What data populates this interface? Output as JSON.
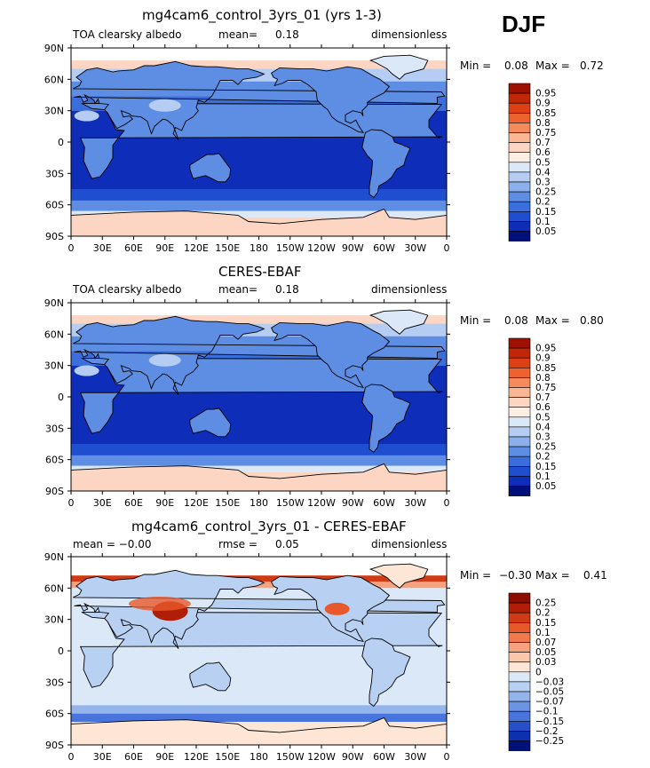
{
  "season": "DJF",
  "panels": [
    {
      "title": "mg4cam6_control_3yrs_01 (yrs 1-3)",
      "left_label": "TOA clearsky albedo",
      "center_label": "mean=",
      "center_value": "0.18",
      "right_label": "dimensionless",
      "min_label": "Min =",
      "min_value": "0.08",
      "max_label": "Max =",
      "max_value": "0.72",
      "levels": [
        "0.95",
        "0.9",
        "0.85",
        "0.8",
        "0.75",
        "0.7",
        "0.6",
        "0.5",
        "0.4",
        "0.3",
        "0.25",
        "0.2",
        "0.15",
        "0.1",
        "0.05"
      ]
    },
    {
      "title": "CERES-EBAF",
      "left_label": "TOA clearsky albedo",
      "center_label": "mean=",
      "center_value": "0.18",
      "right_label": "dimensionless",
      "min_label": "Min =",
      "min_value": "0.08",
      "max_label": "Max =",
      "max_value": "0.80",
      "levels": [
        "0.95",
        "0.9",
        "0.85",
        "0.8",
        "0.75",
        "0.7",
        "0.6",
        "0.5",
        "0.4",
        "0.3",
        "0.25",
        "0.2",
        "0.15",
        "0.1",
        "0.05"
      ]
    },
    {
      "title": "mg4cam6_control_3yrs_01 - CERES-EBAF",
      "left_label": "mean = −0.00",
      "center_label": "rmse =",
      "center_value": "0.05",
      "right_label": "dimensionless",
      "min_label": "Min =",
      "min_value": "−0.30",
      "max_label": "Max =",
      "max_value": "0.41",
      "levels": [
        "0.25",
        "0.2",
        "0.15",
        "0.1",
        "0.07",
        "0.05",
        "0.03",
        "0",
        "−0.03",
        "−0.05",
        "−0.07",
        "−0.1",
        "−0.15",
        "−0.2",
        "−0.25"
      ]
    }
  ],
  "lat_ticks": [
    "90N",
    "60N",
    "30N",
    "0",
    "30S",
    "60S",
    "90S"
  ],
  "lon_ticks": [
    "0",
    "30E",
    "60E",
    "90E",
    "120E",
    "150E",
    "180",
    "150W",
    "120W",
    "90W",
    "60W",
    "30W",
    "0"
  ],
  "colors": {
    "abs_scale": [
      "#9e1000",
      "#c22608",
      "#de4016",
      "#ee6230",
      "#f58a5c",
      "#fbb696",
      "#fcd6c2",
      "#fdeee4",
      "#dbe8f8",
      "#b5cdf2",
      "#8cb0ec",
      "#5e8ee4",
      "#3a6edc",
      "#1f4ed0",
      "#0e2db8",
      "#000f7a"
    ],
    "diff_scale": [
      "#8c0c00",
      "#b01e08",
      "#d03a14",
      "#e8582a",
      "#f07a4e",
      "#f6a27e",
      "#fac6ac",
      "#fde6d6",
      "#dbe8f8",
      "#b8d0f2",
      "#94b4ec",
      "#6c94e4",
      "#4874dc",
      "#2650c8",
      "#0e30b0",
      "#00117a"
    ]
  }
}
